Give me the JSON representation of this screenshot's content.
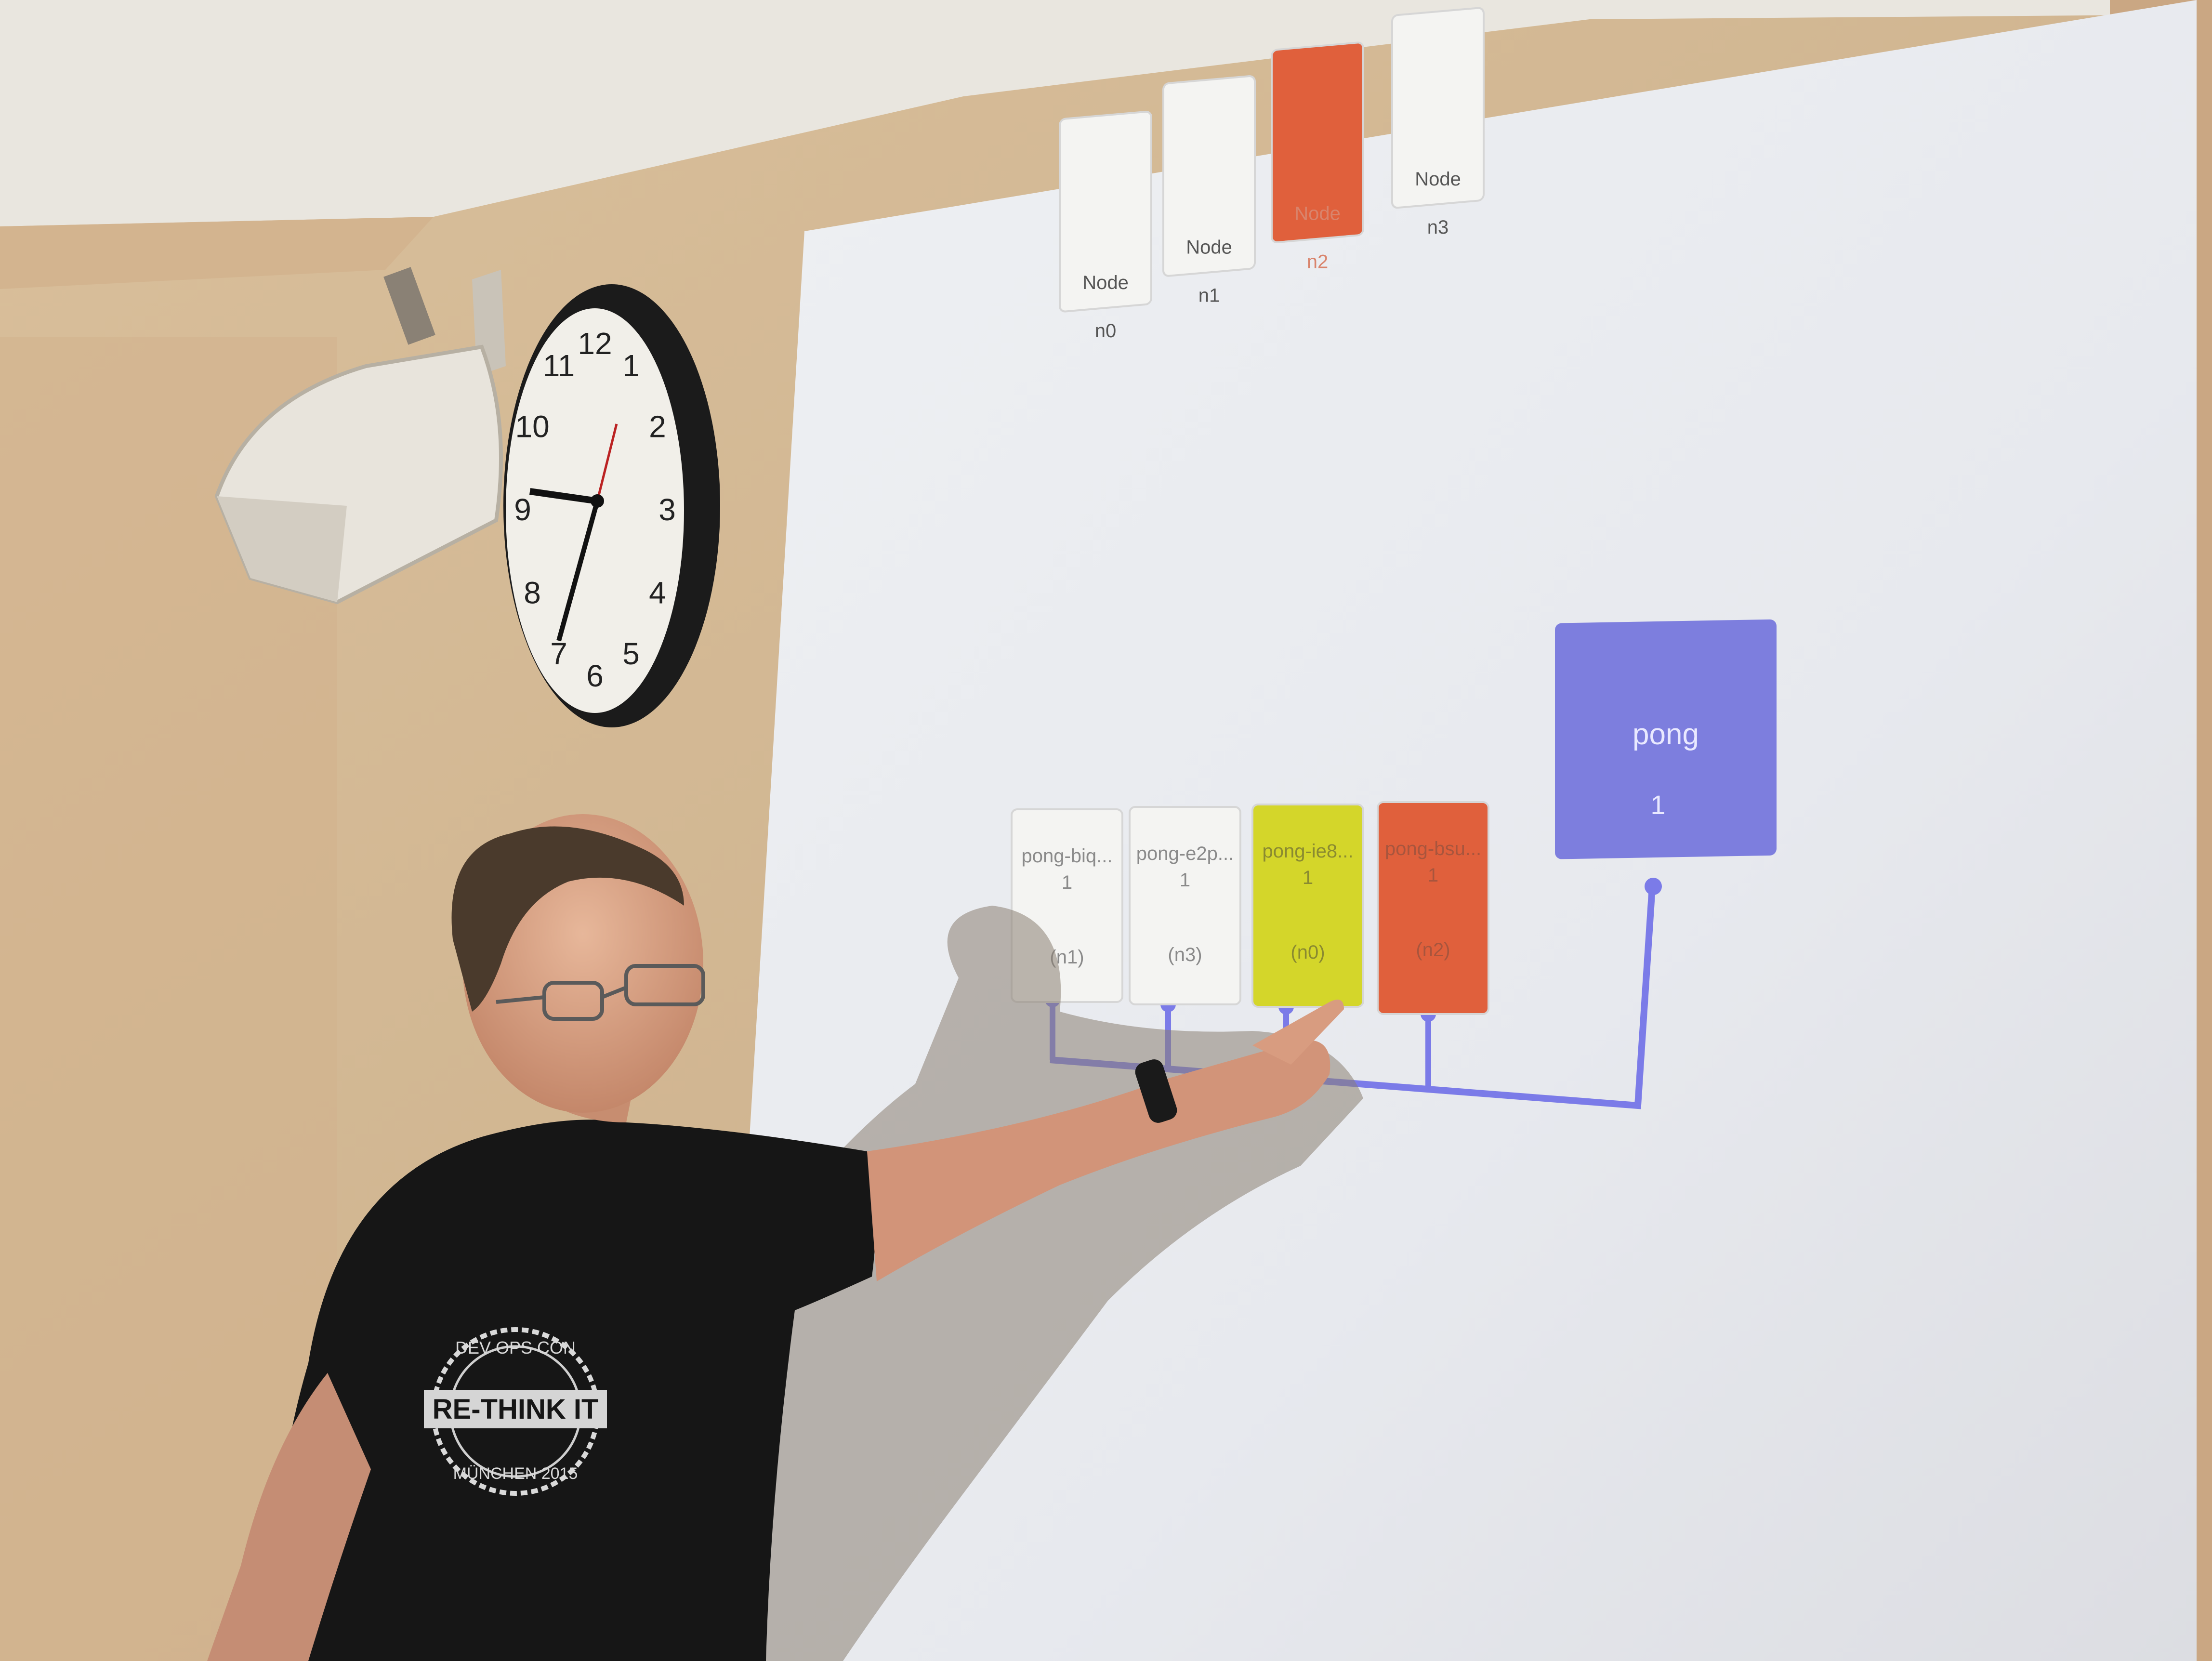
{
  "nodes": [
    {
      "label": "Node",
      "id": "n0",
      "color": "#f4f4f2",
      "text_color": "#555555"
    },
    {
      "label": "Node",
      "id": "n1",
      "color": "#f4f4f2",
      "text_color": "#555555"
    },
    {
      "label": "Node",
      "id": "n2",
      "color": "#e0603c",
      "text_color": "#d9846c"
    },
    {
      "label": "Node",
      "id": "n3",
      "color": "#f4f4f2",
      "text_color": "#555555"
    }
  ],
  "pods": [
    {
      "name": "pong-biq...",
      "count": "1",
      "node": "(n1)",
      "color": "#f4f4f2",
      "text_color": "#8a8a8a"
    },
    {
      "name": "pong-e2p...",
      "count": "1",
      "node": "(n3)",
      "color": "#f4f4f2",
      "text_color": "#8a8a8a"
    },
    {
      "name": "pong-ie8...",
      "count": "1",
      "node": "(n0)",
      "color": "#d4d62a",
      "text_color": "#8a8a30"
    },
    {
      "name": "pong-bsu...",
      "count": "1",
      "node": "(n2)",
      "color": "#e0603c",
      "text_color": "#a8553d"
    }
  ],
  "service": {
    "name": "pong",
    "count": "1",
    "color": "#7d7ede"
  },
  "connector_color": "#7b7be8",
  "shirt": {
    "top": "DEV OPS CON",
    "middle": "RE-THINK IT",
    "bottom": "MÜNCHEN 2015"
  },
  "clock": {
    "numbers": [
      "12",
      "1",
      "2",
      "3",
      "4",
      "5",
      "6",
      "7",
      "8",
      "9",
      "10",
      "11"
    ]
  }
}
